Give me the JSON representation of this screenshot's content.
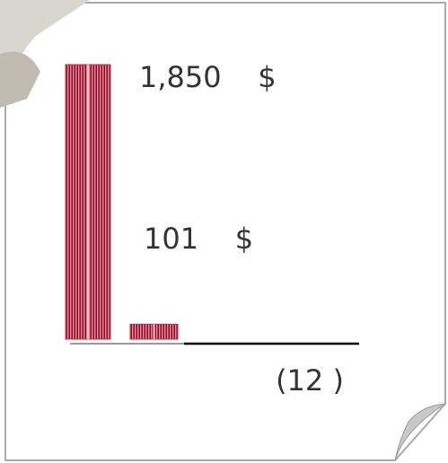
{
  "chart_data": {
    "type": "bar",
    "values": [
      1850,
      101
    ],
    "value_labels": [
      "1,850    $",
      "101    $"
    ],
    "xlabel": "(12    )",
    "color": "#b8354f"
  }
}
